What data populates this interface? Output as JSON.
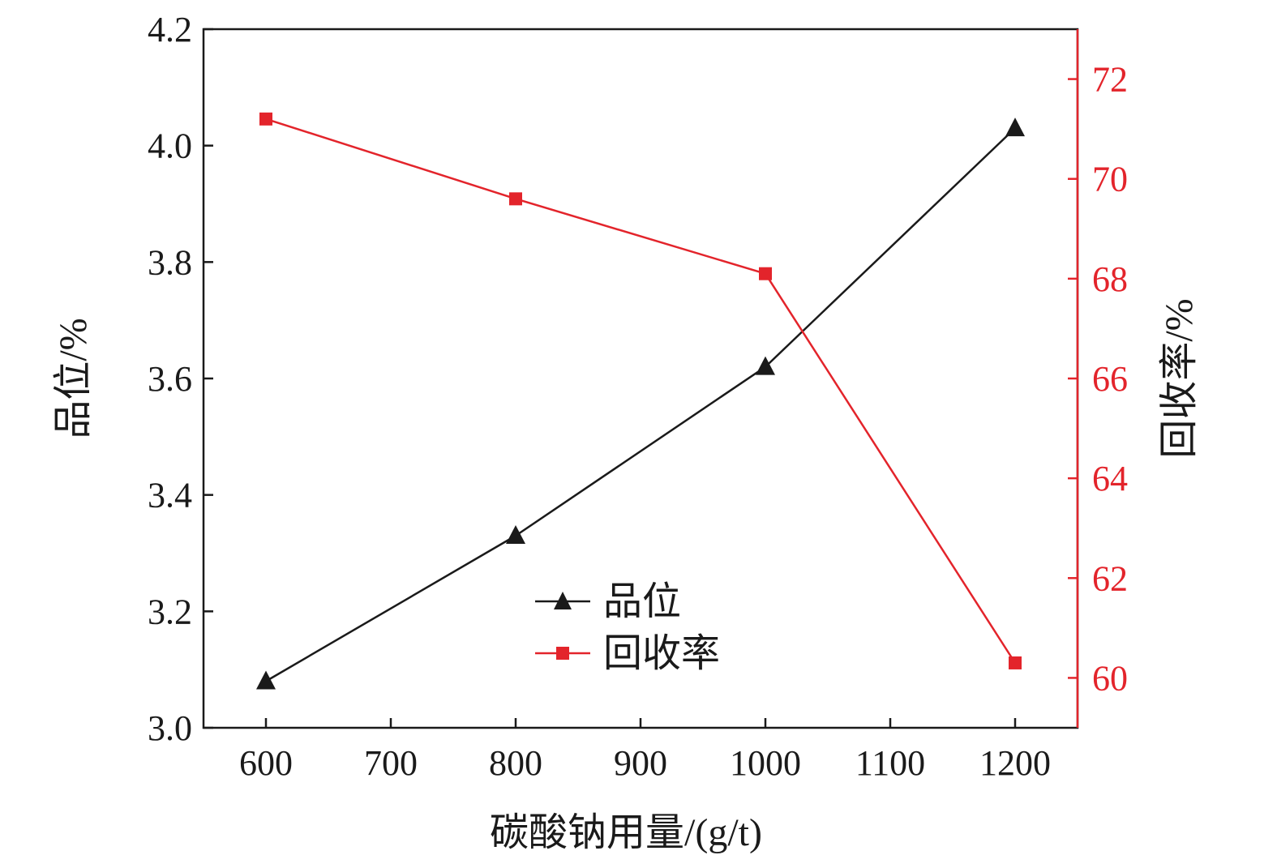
{
  "chart_data": {
    "type": "line",
    "x": [
      600,
      800,
      1000,
      1200
    ],
    "xlabel": "碳酸钠用量/(g/t)",
    "xlim": [
      550,
      1250
    ],
    "xticks": [
      600,
      700,
      800,
      900,
      1000,
      1100,
      1200
    ],
    "y_left": {
      "label": "品位/%",
      "lim": [
        3.0,
        4.2
      ],
      "ticks": [
        "3.0",
        "3.2",
        "3.4",
        "3.6",
        "3.8",
        "4.0",
        "4.2"
      ],
      "color": "#1a1a1a"
    },
    "y_right": {
      "label": "回收率/%",
      "lim": [
        59.0,
        73.0
      ],
      "ticks": [
        "60",
        "62",
        "64",
        "66",
        "68",
        "70",
        "72"
      ],
      "color": "#e3242b"
    },
    "series": [
      {
        "name": "品位",
        "axis": "left",
        "values": [
          3.08,
          3.33,
          3.62,
          4.03
        ],
        "color": "#1a1a1a",
        "marker": "triangle"
      },
      {
        "name": "回收率",
        "axis": "right",
        "values": [
          71.2,
          69.6,
          68.1,
          60.3
        ],
        "color": "#e3242b",
        "marker": "square"
      }
    ],
    "legend_position": "center-bottom",
    "grid": false
  }
}
